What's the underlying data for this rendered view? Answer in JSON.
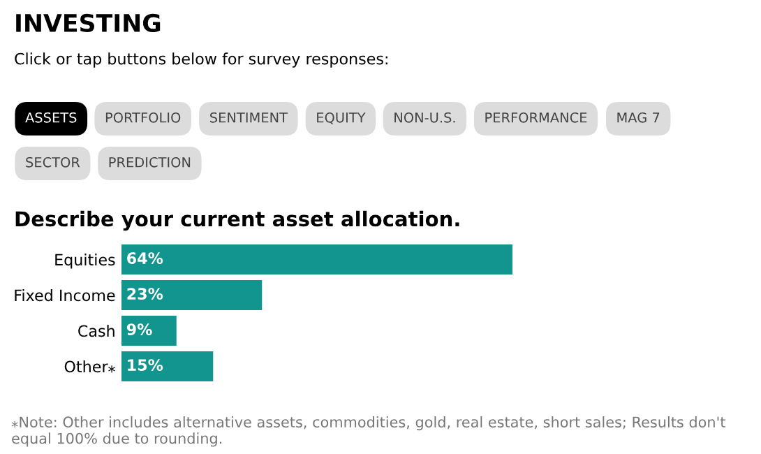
{
  "chart_data": {
    "type": "bar",
    "orientation": "horizontal",
    "tick_labels": "y",
    "data_labels": true,
    "title": "Describe your current asset allocation.",
    "categories": [
      "Equities",
      "Fixed Income",
      "Cash",
      "Other⁎"
    ],
    "values": [
      64,
      23,
      9,
      15
    ],
    "value_labels": [
      "64%",
      "23%",
      "9%",
      "15%"
    ],
    "color": "#12948f",
    "grid": false,
    "legend": false,
    "annotations": [
      "INVESTING",
      "Click or tap buttons below for survey responses:",
      "ASSETS",
      "PORTFOLIO",
      "SENTIMENT",
      "EQUITY",
      "NON-U.S.",
      "PERFORMANCE",
      "MAG 7",
      "SECTOR",
      "PREDICTION",
      "⁎Note: Other includes alternative assets, commodities, gold, real estate, short sales; Results don't equal 100% due to rounding."
    ]
  }
}
